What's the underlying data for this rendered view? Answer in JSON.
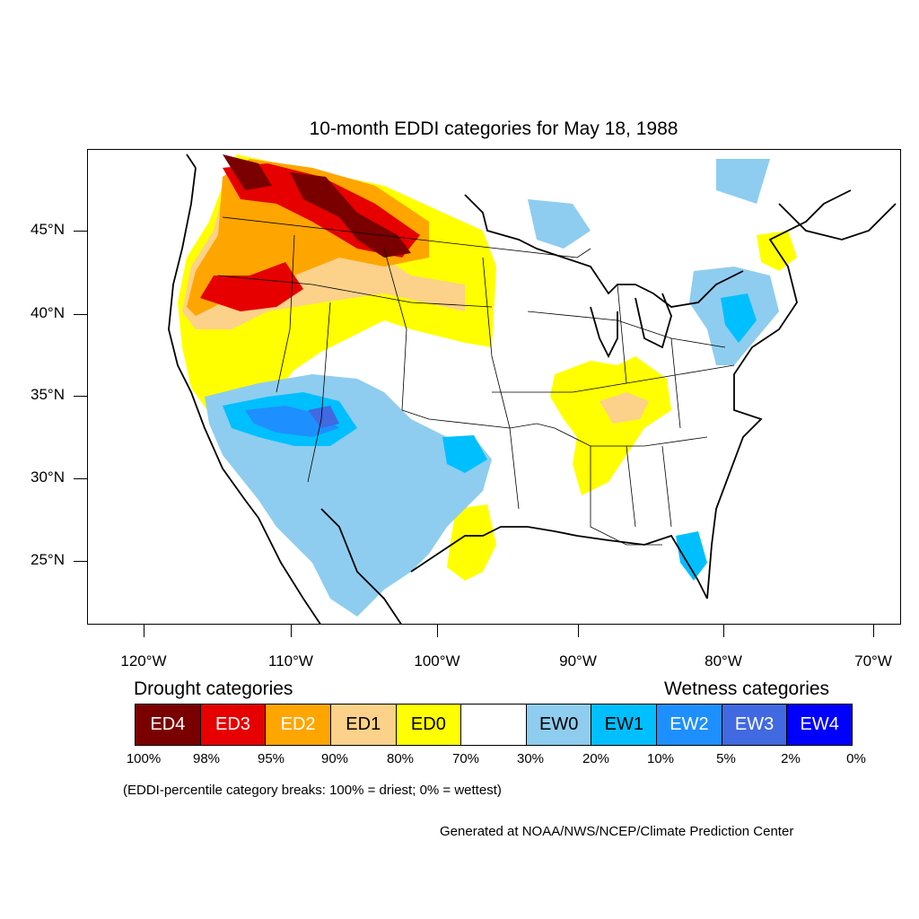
{
  "title": "10-month EDDI categories for May 18, 1988",
  "lat_labels": [
    "45°N",
    "40°N",
    "35°N",
    "30°N",
    "25°N"
  ],
  "lon_labels": [
    "120°W",
    "110°W",
    "100°W",
    "90°W",
    "80°W",
    "70°W"
  ],
  "legend": {
    "drought_title": "Drought categories",
    "wetness_title": "Wetness categories",
    "categories": [
      {
        "label": "ED4",
        "color": "#7a0000",
        "text_color": "#ffffff"
      },
      {
        "label": "ED3",
        "color": "#e60000",
        "text_color": "#ffffff"
      },
      {
        "label": "ED2",
        "color": "#ffa500",
        "text_color": "#ffffff"
      },
      {
        "label": "ED1",
        "color": "#fcd18a",
        "text_color": "#000000"
      },
      {
        "label": "ED0",
        "color": "#ffff00",
        "text_color": "#000000"
      },
      {
        "label": "",
        "color": "#ffffff",
        "text_color": "#000000"
      },
      {
        "label": "EW0",
        "color": "#8ecdef",
        "text_color": "#000000"
      },
      {
        "label": "EW1",
        "color": "#00bfff",
        "text_color": "#000000"
      },
      {
        "label": "EW2",
        "color": "#1e8fff",
        "text_color": "#ffffff"
      },
      {
        "label": "EW3",
        "color": "#4169e1",
        "text_color": "#ffffff"
      },
      {
        "label": "EW4",
        "color": "#0000ff",
        "text_color": "#ffffff"
      }
    ],
    "percentiles": [
      "100%",
      "98%",
      "95%",
      "90%",
      "80%",
      "70%",
      "30%",
      "20%",
      "10%",
      "5%",
      "2%",
      "0%"
    ]
  },
  "note": "(EDDI-percentile category breaks: 100% = driest; 0% = wettest)",
  "credit": "Generated at NOAA/NWS/NCEP/Climate Prediction Center"
}
